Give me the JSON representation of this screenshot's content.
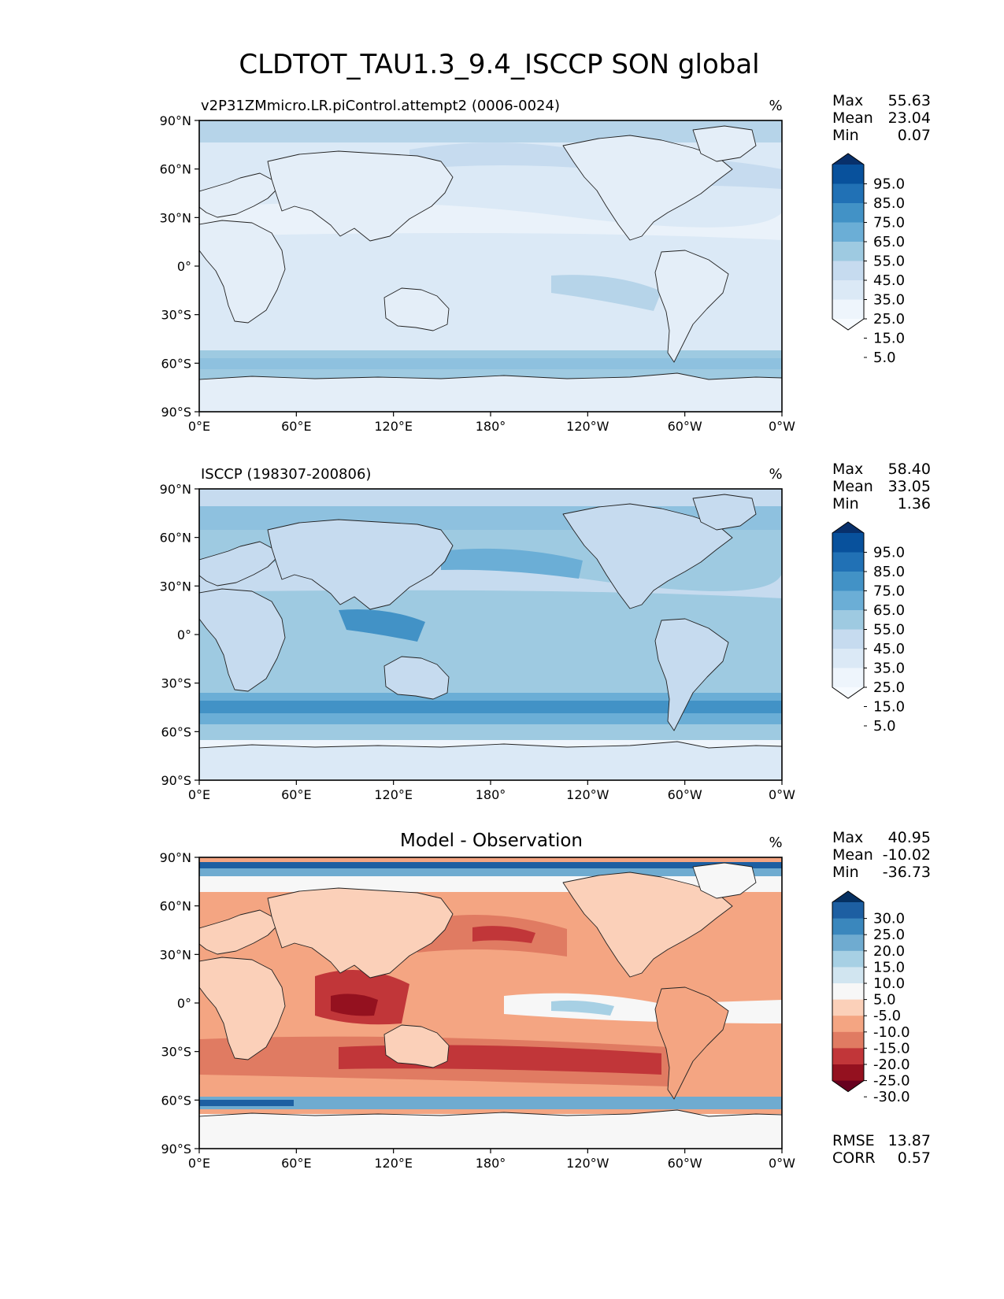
{
  "figure": {
    "title": "CLDTOT_TAU1.3_9.4_ISCCP SON global",
    "lon_ticks": [
      "0°E",
      "60°E",
      "120°E",
      "180°",
      "120°W",
      "60°W",
      "0°W"
    ],
    "lat_ticks": [
      "90°N",
      "60°N",
      "30°N",
      "0°",
      "30°S",
      "60°S",
      "90°S"
    ]
  },
  "panels": [
    {
      "subtitle": "v2P31ZMmicro.LR.piControl.attempt2 (0006-0024)",
      "title": "",
      "units": "%",
      "stats": [
        {
          "label": "Max",
          "value": "55.63"
        },
        {
          "label": "Mean",
          "value": "23.04"
        },
        {
          "label": "Min",
          "value": "0.07"
        }
      ],
      "colorbar": {
        "labels": [
          "95.0",
          "85.0",
          "75.0",
          "65.0",
          "55.0",
          "45.0",
          "35.0",
          "25.0",
          "15.0",
          "5.0"
        ],
        "colors": [
          "#08306b",
          "#08519c",
          "#2171b5",
          "#4292c6",
          "#6baed6",
          "#9ecae1",
          "#c6dbef",
          "#dbe9f6",
          "#eef5fc",
          "#f7fbff"
        ]
      },
      "footer": []
    },
    {
      "subtitle": "ISCCP (198307-200806)",
      "title": "",
      "units": "%",
      "stats": [
        {
          "label": "Max",
          "value": "58.40"
        },
        {
          "label": "Mean",
          "value": "33.05"
        },
        {
          "label": "Min",
          "value": "1.36"
        }
      ],
      "colorbar": {
        "labels": [
          "95.0",
          "85.0",
          "75.0",
          "65.0",
          "55.0",
          "45.0",
          "35.0",
          "25.0",
          "15.0",
          "5.0"
        ],
        "colors": [
          "#08306b",
          "#08519c",
          "#2171b5",
          "#4292c6",
          "#6baed6",
          "#9ecae1",
          "#c6dbef",
          "#dbe9f6",
          "#eef5fc",
          "#f7fbff"
        ]
      },
      "footer": []
    },
    {
      "subtitle": "",
      "title": "Model - Observation",
      "units": "%",
      "stats": [
        {
          "label": "Max",
          "value": "40.95"
        },
        {
          "label": "Mean",
          "value": "-10.02"
        },
        {
          "label": "Min",
          "value": "-36.73"
        }
      ],
      "colorbar": {
        "labels": [
          "30.0",
          "25.0",
          "20.0",
          "15.0",
          "10.0",
          "5.0",
          "-5.0",
          "-10.0",
          "-15.0",
          "-20.0",
          "-25.0",
          "-30.0"
        ],
        "colors": [
          "#053061",
          "#1d5fa2",
          "#3a87bd",
          "#6fabd0",
          "#a7d0e4",
          "#d1e5f0",
          "#f7f7f7",
          "#fbd0b9",
          "#f4a582",
          "#e07b62",
          "#c13639",
          "#94111f",
          "#67001f"
        ]
      },
      "footer": [
        {
          "label": "RMSE",
          "value": "13.87"
        },
        {
          "label": "CORR",
          "value": "0.57"
        }
      ]
    }
  ]
}
